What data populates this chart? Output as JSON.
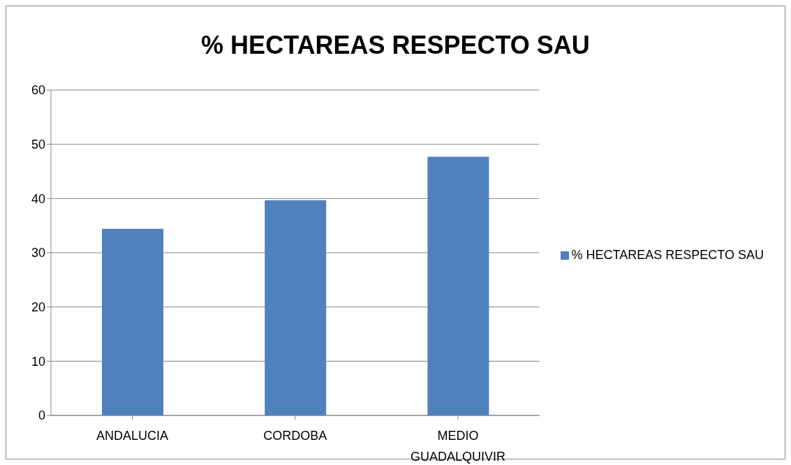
{
  "chart_data": {
    "type": "bar",
    "title": "% HECTAREAS RESPECTO SAU",
    "categories": [
      "ANDALUCIA",
      "CORDOBA",
      "MEDIO GUADALQUIVIR"
    ],
    "series": [
      {
        "name": "% HECTAREAS RESPECTO SAU",
        "color": "#4f81bd",
        "values": [
          34.4,
          39.7,
          47.7
        ]
      }
    ],
    "ylim": [
      0,
      60
    ],
    "yticks": [
      0,
      10,
      20,
      30,
      40,
      50,
      60
    ],
    "grid": "y",
    "legend": "right"
  }
}
